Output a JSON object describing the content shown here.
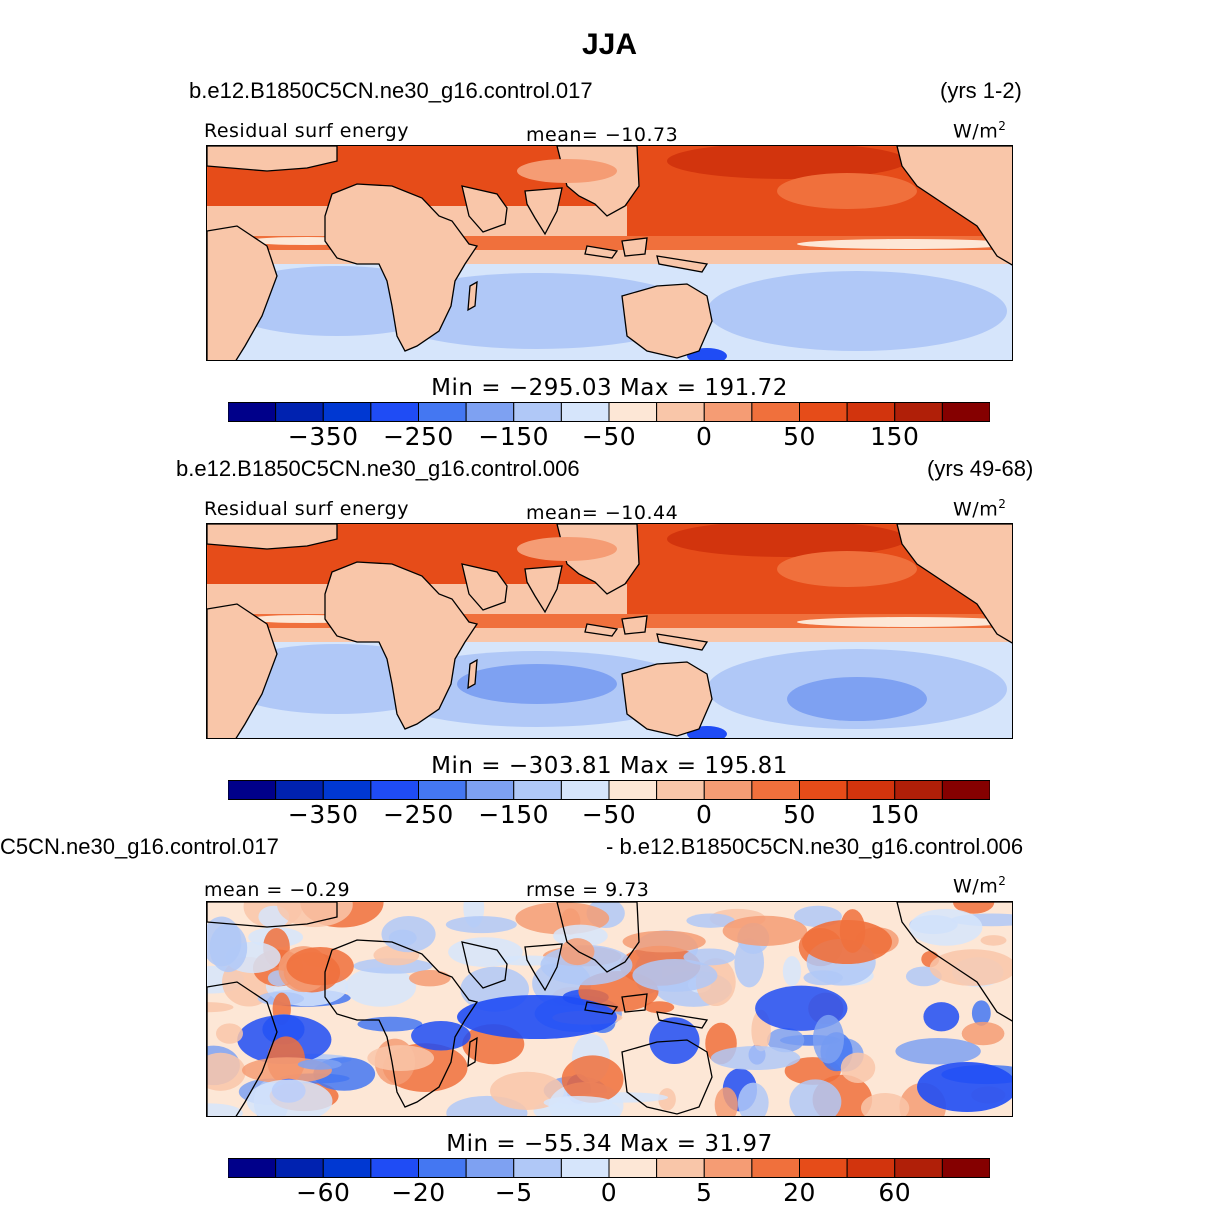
{
  "title": "JJA",
  "colors": [
    "#00008a",
    "#0022b0",
    "#0038d2",
    "#1f4cf5",
    "#4477f2",
    "#7ea1f2",
    "#b0c8f7",
    "#d6e5fb",
    "#fde7d6",
    "#f9c6a9",
    "#f59c74",
    "#f0703c",
    "#e64c19",
    "#d2340d",
    "#b01f08",
    "#850000"
  ],
  "panels": [
    {
      "case": "b.e12.B1850C5CN.ne30_g16.control.017",
      "years": "(yrs 1-2)",
      "left_label": "Residual surf energy",
      "center_label": "mean= −10.73",
      "units": "W/m",
      "units_sup": "2",
      "minmax": "Min  =  −295.03  Max  =  191.72",
      "ticks": [
        "−350",
        "−250",
        "−150",
        "−50",
        "0",
        "50",
        "150"
      ],
      "field": "absolute"
    },
    {
      "case": "b.e12.B1850C5CN.ne30_g16.control.006",
      "years": "(yrs 49-68)",
      "left_label": "Residual surf energy",
      "center_label": "mean= −10.44",
      "units": "W/m",
      "units_sup": "2",
      "minmax": "Min  =  −303.81  Max  =  195.81",
      "ticks": [
        "−350",
        "−250",
        "−150",
        "−50",
        "0",
        "50",
        "150"
      ],
      "field": "absolute"
    },
    {
      "case_left": "C5CN.ne30_g16.control.017",
      "case_right": "- b.e12.B1850C5CN.ne30_g16.control.006",
      "left_label": "mean =   −0.29",
      "center_label": "rmse  =    9.73",
      "units": "W/m",
      "units_sup": "2",
      "minmax": "Min  =  −55.34  Max  =   31.97",
      "ticks": [
        "−60",
        "−20",
        "−5",
        "0",
        "5",
        "20",
        "60"
      ],
      "field": "difference"
    }
  ]
}
